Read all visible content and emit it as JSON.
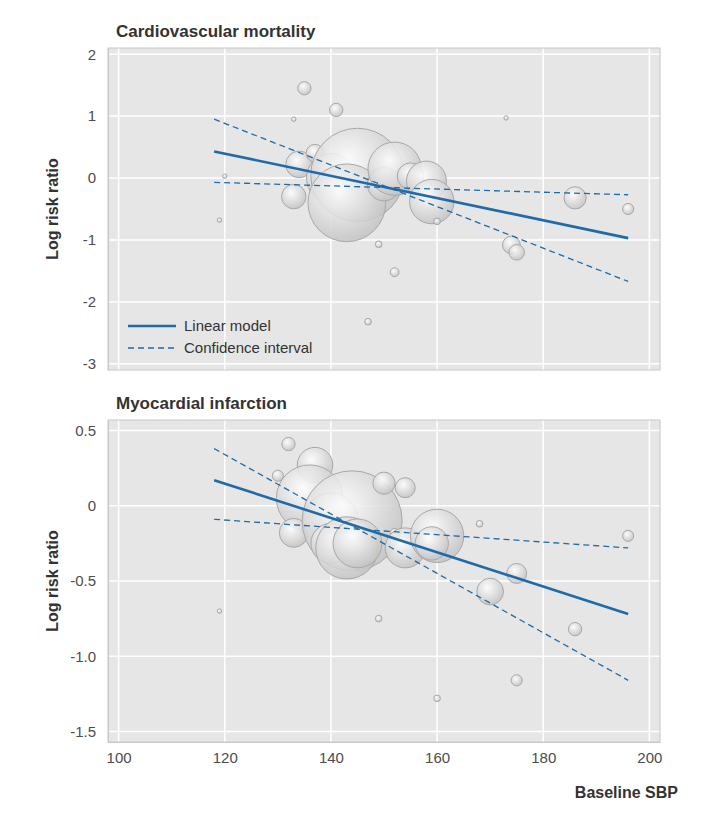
{
  "chart_data": [
    {
      "type": "bubble",
      "title": "Cardiovascular mortality",
      "y_label": "Log risk ratio",
      "xlim": [
        98,
        202
      ],
      "ylim": [
        -3.1,
        2.1
      ],
      "xticks": [
        100,
        120,
        140,
        160,
        180,
        200
      ],
      "yticks": [
        -3,
        -2,
        -1,
        0,
        1,
        2
      ],
      "grid": true,
      "legend": "lower left",
      "tick_labels": "y",
      "series": [
        {
          "type": "bubble",
          "color": "#c4c4c4",
          "x": [
            119,
            120,
            133,
            135,
            134,
            133,
            137,
            141,
            140,
            139,
            145,
            143,
            147,
            149,
            150,
            152,
            152,
            155,
            158,
            159,
            160,
            173,
            174,
            175,
            186,
            196
          ],
          "values": [
            -0.68,
            0.03,
            0.95,
            1.45,
            0.22,
            -0.3,
            0.4,
            1.1,
            0,
            -0.03,
            0.05,
            -0.4,
            -2.32,
            -1.07,
            -0.1,
            0.15,
            -1.52,
            0.03,
            -0.05,
            -0.38,
            -0.7,
            0.97,
            -1.08,
            -1.2,
            -0.32,
            -0.5
          ],
          "size": [
            4,
            4,
            4,
            36,
            144,
            121,
            64,
            36,
            484,
            16,
            1764,
            1225,
            9,
            9,
            225,
            576,
            16,
            144,
            324,
            400,
            9,
            4,
            64,
            49,
            100,
            25
          ]
        },
        {
          "name": "Linear model",
          "type": "line",
          "line_style": "solid",
          "color": "#1f6aa8",
          "x": [
            118,
            196
          ],
          "values": [
            0.43,
            -0.97
          ]
        },
        {
          "name": "Confidence interval",
          "type": "line",
          "line_style": "dashed",
          "color": "#1f6aa8",
          "x": [
            118,
            196
          ],
          "values": [
            0.95,
            -1.67
          ]
        },
        {
          "type": "line",
          "line_style": "dashed",
          "color": "#1f6aa8",
          "x": [
            118,
            196
          ],
          "values": [
            -0.07,
            -0.27
          ]
        }
      ]
    },
    {
      "type": "bubble",
      "title": "Myocardial infarction",
      "y_label": "Log risk ratio",
      "x_label": "Baseline SBP",
      "xlim": [
        98,
        202
      ],
      "ylim": [
        -1.57,
        0.57
      ],
      "xticks": [
        100,
        120,
        140,
        160,
        180,
        200
      ],
      "yticks": [
        {
          "value": -1.5,
          "label": "-1.5"
        },
        {
          "value": -1,
          "label": "-1.0"
        },
        -0.5,
        0,
        0.5
      ],
      "grid": true,
      "series": [
        {
          "type": "bubble",
          "color": "#c4c4c4",
          "x": [
            119,
            130,
            132,
            137,
            136,
            133,
            140,
            144,
            140,
            143,
            145,
            149,
            150,
            152,
            154,
            154,
            160,
            159,
            160,
            168,
            170,
            175,
            175,
            186,
            196
          ],
          "values": [
            -0.7,
            0.2,
            0.41,
            0.27,
            0.05,
            -0.18,
            -0.1,
            -0.1,
            -0.25,
            -0.28,
            -0.25,
            -0.75,
            0.15,
            -0.18,
            0.12,
            -0.28,
            -0.2,
            -0.25,
            -1.28,
            -0.12,
            -0.57,
            -0.45,
            -1.16,
            -0.82,
            -0.2
          ],
          "size": [
            4,
            25,
            36,
            256,
            900,
            169,
            625,
            2025,
            324,
            784,
            484,
            9,
            100,
            16,
            81,
            324,
            576,
            225,
            9,
            9,
            144,
            81,
            25,
            36,
            25
          ]
        },
        {
          "name": "Linear model",
          "type": "line",
          "line_style": "solid",
          "color": "#1f6aa8",
          "x": [
            118,
            196
          ],
          "values": [
            0.17,
            -0.72
          ]
        },
        {
          "name": "Confidence interval",
          "type": "line",
          "line_style": "dashed",
          "color": "#1f6aa8",
          "x": [
            118,
            196
          ],
          "values": [
            0.38,
            -1.16
          ]
        },
        {
          "type": "line",
          "line_style": "dashed",
          "color": "#1f6aa8",
          "x": [
            118,
            196
          ],
          "values": [
            -0.09,
            -0.28
          ]
        }
      ]
    }
  ]
}
